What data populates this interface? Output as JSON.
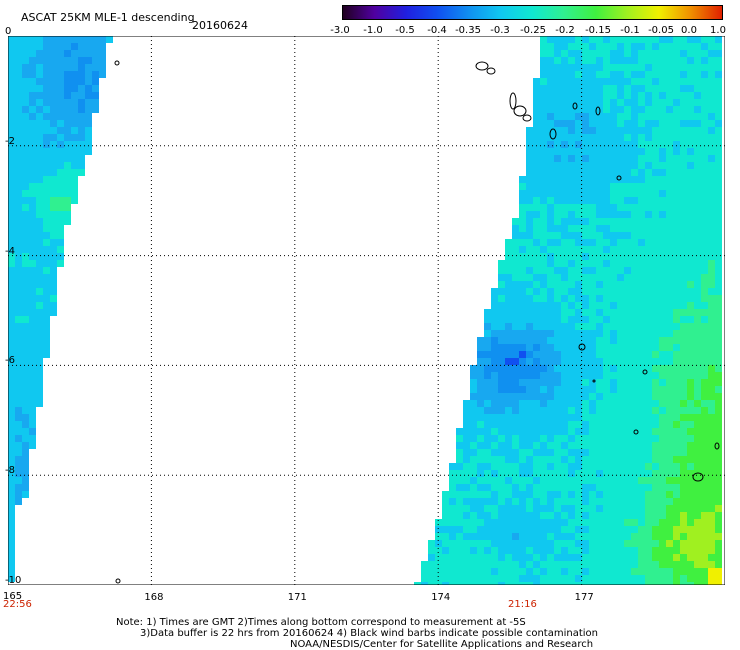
{
  "header": {
    "title": "ASCAT 25KM MLE-1 descending",
    "date": "20160624"
  },
  "colorbar": {
    "labels": [
      "-3.0",
      "-1.0",
      "-0.5",
      "-0.4",
      "-0.35",
      "-0.3",
      "-0.25",
      "-0.2",
      "-0.15",
      "-0.1",
      "-0.05",
      "0.0",
      "1.0"
    ],
    "colors": [
      "#200020",
      "#5000a0",
      "#2020e0",
      "#1050f0",
      "#1090f0",
      "#10c8f0",
      "#10e8d0",
      "#30f090",
      "#40f040",
      "#a0f020",
      "#f0f000",
      "#f09000",
      "#e02000"
    ]
  },
  "map": {
    "lon_min": 165,
    "lon_max": 180,
    "lat_min": -10,
    "lat_max": 0,
    "lon_ticks": [
      "168",
      "171",
      "174",
      "177"
    ],
    "lat_ticks": [
      "0",
      "-2",
      "-4",
      "-6",
      "-8",
      "-10"
    ],
    "lat_values": [
      0,
      -2,
      -4,
      -6,
      -8,
      -10
    ],
    "corner_lon": "165"
  },
  "times": {
    "left": "22:56",
    "middle": "21:16"
  },
  "notes": {
    "line1": "Note: 1) Times are GMT 2)Times along bottom correspond to measurement at -5S",
    "line2": "3)Data buffer is 22 hrs from 20160624 4) Black wind barbs indicate possible contamination",
    "line3": "NOAA/NESDIS/Center for Satellite Applications and Research"
  }
}
